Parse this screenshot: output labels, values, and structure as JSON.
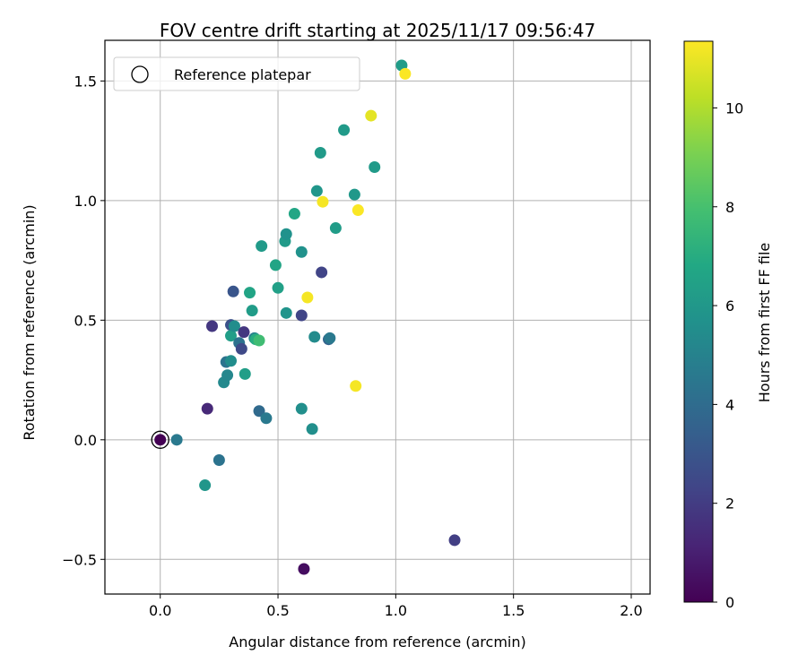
{
  "chart_data": {
    "type": "scatter",
    "title": "FOV centre drift starting at 2025/11/17 09:56:47",
    "xlabel": "Angular distance from reference (arcmin)",
    "ylabel": "Rotation from reference (arcmin)",
    "xlim": [
      -0.235,
      2.08
    ],
    "ylim": [
      -0.645,
      1.67
    ],
    "xticks": [
      0.0,
      0.5,
      1.0,
      1.5,
      2.0
    ],
    "xtick_labels": [
      "0.0",
      "0.5",
      "1.0",
      "1.5",
      "2.0"
    ],
    "yticks": [
      -0.5,
      0.0,
      0.5,
      1.0,
      1.5
    ],
    "ytick_labels": [
      "−0.5",
      "0.0",
      "0.5",
      "1.0",
      "1.5"
    ],
    "grid": true,
    "colormap": "viridis",
    "colorbar": {
      "label": "Hours from first FF file",
      "range": [
        0,
        11.35
      ],
      "ticks": [
        0,
        2,
        4,
        6,
        8,
        10
      ],
      "tick_labels": [
        "0",
        "2",
        "4",
        "6",
        "8",
        "10"
      ]
    },
    "legend": {
      "location": "top-left",
      "entries": [
        {
          "label": "Reference platepar",
          "marker": "open-circle"
        }
      ]
    },
    "reference_point": {
      "x": 0.0,
      "y": 0.0
    },
    "points": [
      {
        "x": 0.0,
        "y": 0.0,
        "hours": 0.0
      },
      {
        "x": 0.07,
        "y": 0.0,
        "hours": 4.6
      },
      {
        "x": 0.2,
        "y": 0.13,
        "hours": 1.3
      },
      {
        "x": 0.22,
        "y": 0.475,
        "hours": 1.8
      },
      {
        "x": 0.25,
        "y": -0.085,
        "hours": 4.3
      },
      {
        "x": 0.19,
        "y": -0.19,
        "hours": 5.9
      },
      {
        "x": 0.27,
        "y": 0.24,
        "hours": 5.3
      },
      {
        "x": 0.28,
        "y": 0.325,
        "hours": 4.3
      },
      {
        "x": 0.285,
        "y": 0.27,
        "hours": 5.2
      },
      {
        "x": 0.3,
        "y": 0.33,
        "hours": 5.5
      },
      {
        "x": 0.3,
        "y": 0.48,
        "hours": 2.8
      },
      {
        "x": 0.3,
        "y": 0.435,
        "hours": 6.3
      },
      {
        "x": 0.31,
        "y": 0.62,
        "hours": 3.0
      },
      {
        "x": 0.315,
        "y": 0.475,
        "hours": 5.5
      },
      {
        "x": 0.335,
        "y": 0.405,
        "hours": 4.2
      },
      {
        "x": 0.345,
        "y": 0.38,
        "hours": 2.5
      },
      {
        "x": 0.355,
        "y": 0.45,
        "hours": 1.8
      },
      {
        "x": 0.36,
        "y": 0.275,
        "hours": 6.3
      },
      {
        "x": 0.38,
        "y": 0.615,
        "hours": 6.6
      },
      {
        "x": 0.39,
        "y": 0.54,
        "hours": 6.2
      },
      {
        "x": 0.4,
        "y": 0.425,
        "hours": 4.9
      },
      {
        "x": 0.405,
        "y": 0.42,
        "hours": 7.0
      },
      {
        "x": 0.42,
        "y": 0.415,
        "hours": 7.8
      },
      {
        "x": 0.42,
        "y": 0.12,
        "hours": 3.9
      },
      {
        "x": 0.43,
        "y": 0.81,
        "hours": 6.1
      },
      {
        "x": 0.45,
        "y": 0.09,
        "hours": 4.6
      },
      {
        "x": 0.49,
        "y": 0.73,
        "hours": 6.6
      },
      {
        "x": 0.5,
        "y": 0.635,
        "hours": 6.4
      },
      {
        "x": 0.53,
        "y": 0.83,
        "hours": 6.1
      },
      {
        "x": 0.535,
        "y": 0.86,
        "hours": 5.7
      },
      {
        "x": 0.535,
        "y": 0.53,
        "hours": 5.8
      },
      {
        "x": 0.57,
        "y": 0.945,
        "hours": 6.7
      },
      {
        "x": 0.6,
        "y": 0.52,
        "hours": 2.3
      },
      {
        "x": 0.6,
        "y": 0.785,
        "hours": 5.7
      },
      {
        "x": 0.6,
        "y": 0.13,
        "hours": 5.6
      },
      {
        "x": 0.61,
        "y": -0.54,
        "hours": 0.4
      },
      {
        "x": 0.625,
        "y": 0.595,
        "hours": 11.2
      },
      {
        "x": 0.645,
        "y": 0.045,
        "hours": 5.6
      },
      {
        "x": 0.655,
        "y": 0.43,
        "hours": 5.4
      },
      {
        "x": 0.665,
        "y": 1.04,
        "hours": 5.9
      },
      {
        "x": 0.68,
        "y": 1.2,
        "hours": 6.1
      },
      {
        "x": 0.685,
        "y": 0.7,
        "hours": 2.3
      },
      {
        "x": 0.69,
        "y": 0.995,
        "hours": 11.2
      },
      {
        "x": 0.715,
        "y": 0.42,
        "hours": 3.6
      },
      {
        "x": 0.72,
        "y": 0.425,
        "hours": 4.6
      },
      {
        "x": 0.745,
        "y": 0.885,
        "hours": 6.2
      },
      {
        "x": 0.78,
        "y": 1.295,
        "hours": 6.1
      },
      {
        "x": 0.825,
        "y": 1.025,
        "hours": 6.0
      },
      {
        "x": 0.83,
        "y": 0.225,
        "hours": 11.2
      },
      {
        "x": 0.84,
        "y": 0.96,
        "hours": 11.3
      },
      {
        "x": 0.895,
        "y": 1.355,
        "hours": 10.9
      },
      {
        "x": 0.91,
        "y": 1.14,
        "hours": 6.1
      },
      {
        "x": 1.025,
        "y": 1.565,
        "hours": 6.2
      },
      {
        "x": 1.04,
        "y": 1.53,
        "hours": 11.3
      },
      {
        "x": 1.25,
        "y": -0.42,
        "hours": 2.1
      }
    ]
  }
}
